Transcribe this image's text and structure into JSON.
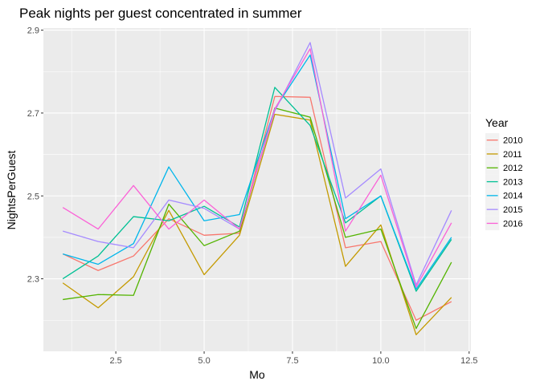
{
  "chart_data": {
    "type": "line",
    "title": "Peak nights per guest concentrated in summer",
    "xlabel": "Mo",
    "ylabel": "NightsPerGuest",
    "xlim": [
      0.45,
      12.55
    ],
    "ylim": [
      2.125,
      2.905
    ],
    "xticks": [
      2.5,
      5.0,
      7.5,
      10.0,
      12.5
    ],
    "xtick_labels": [
      "2.5",
      "5.0",
      "7.5",
      "10.0",
      "12.5"
    ],
    "yticks": [
      2.3,
      2.5,
      2.7,
      2.9
    ],
    "ytick_labels": [
      "2.3",
      "2.5",
      "2.7",
      "2.9"
    ],
    "x": [
      1,
      2,
      3,
      4,
      5,
      6,
      7,
      8,
      9,
      10,
      11,
      12
    ],
    "grid": true,
    "legend": {
      "title": "Year",
      "position": "right"
    },
    "series": [
      {
        "name": "2010",
        "color": "#F8766D",
        "values": [
          2.36,
          2.32,
          2.355,
          2.445,
          2.405,
          2.41,
          2.74,
          2.738,
          2.375,
          2.39,
          2.2,
          2.245
        ]
      },
      {
        "name": "2011",
        "color": "#C49A00",
        "values": [
          2.29,
          2.23,
          2.305,
          2.465,
          2.31,
          2.405,
          2.697,
          2.683,
          2.33,
          2.43,
          2.165,
          2.255
        ]
      },
      {
        "name": "2012",
        "color": "#53B400",
        "values": [
          2.25,
          2.262,
          2.26,
          2.48,
          2.38,
          2.415,
          2.712,
          2.69,
          2.4,
          2.42,
          2.18,
          2.34
        ]
      },
      {
        "name": "2013",
        "color": "#00C094",
        "values": [
          2.3,
          2.355,
          2.45,
          2.44,
          2.475,
          2.425,
          2.762,
          2.67,
          2.435,
          2.5,
          2.27,
          2.395
        ]
      },
      {
        "name": "2014",
        "color": "#00B6EB",
        "values": [
          2.36,
          2.335,
          2.385,
          2.57,
          2.44,
          2.455,
          2.71,
          2.84,
          2.445,
          2.5,
          2.275,
          2.4
        ]
      },
      {
        "name": "2015",
        "color": "#A58AFF",
        "values": [
          2.415,
          2.39,
          2.375,
          2.49,
          2.47,
          2.42,
          2.705,
          2.87,
          2.495,
          2.565,
          2.285,
          2.465
        ]
      },
      {
        "name": "2016",
        "color": "#FB61D7",
        "values": [
          2.472,
          2.42,
          2.525,
          2.42,
          2.49,
          2.42,
          2.71,
          2.855,
          2.415,
          2.55,
          2.28,
          2.435
        ]
      }
    ]
  }
}
